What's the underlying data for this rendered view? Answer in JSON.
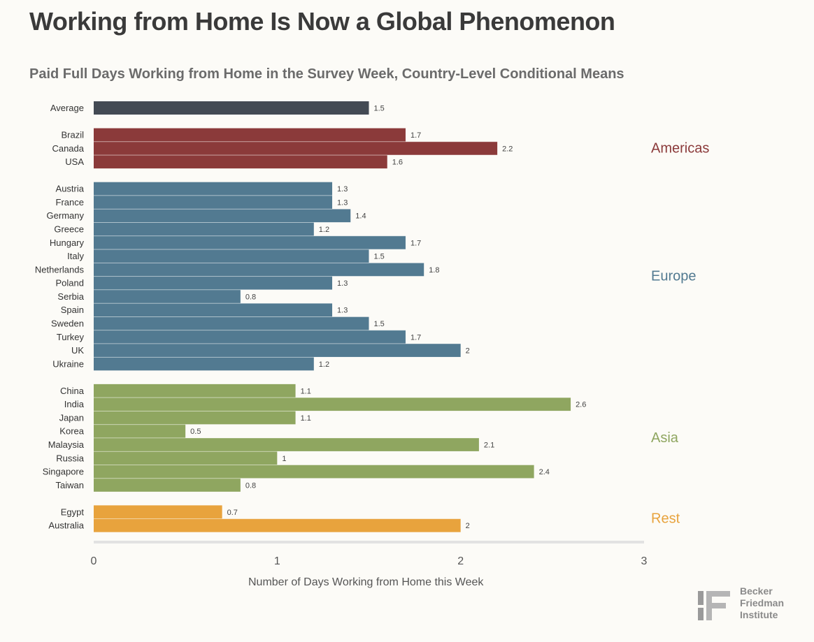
{
  "title": "Working from Home Is Now a Global Phenomenon",
  "subtitle": "Paid Full Days Working from Home in the Survey Week, Country-Level Conditional Means",
  "chart_data": {
    "type": "bar",
    "orientation": "horizontal",
    "title": "Paid Full Days Working from Home in the Survey Week, Country-Level Conditional Means",
    "xlabel": "Number of Days Working from Home this Week",
    "xlim": [
      0,
      3
    ],
    "xticks": [
      0,
      1,
      2,
      3
    ],
    "groups": [
      {
        "name": "",
        "color": "#434a54",
        "categories": [
          "Average"
        ],
        "values": [
          1.5
        ]
      },
      {
        "name": "Americas",
        "color": "#8b3a3a",
        "categories": [
          "Brazil",
          "Canada",
          "USA"
        ],
        "values": [
          1.7,
          2.2,
          1.6
        ]
      },
      {
        "name": "Europe",
        "color": "#527a91",
        "categories": [
          "Austria",
          "France",
          "Germany",
          "Greece",
          "Hungary",
          "Italy",
          "Netherlands",
          "Poland",
          "Serbia",
          "Spain",
          "Sweden",
          "Turkey",
          "UK",
          "Ukraine"
        ],
        "values": [
          1.3,
          1.3,
          1.4,
          1.2,
          1.7,
          1.5,
          1.8,
          1.3,
          0.8,
          1.3,
          1.5,
          1.7,
          2,
          1.2
        ]
      },
      {
        "name": "Asia",
        "color": "#8fa660",
        "categories": [
          "China",
          "India",
          "Japan",
          "Korea",
          "Malaysia",
          "Russia",
          "Singapore",
          "Taiwan"
        ],
        "values": [
          1.1,
          2.6,
          1.1,
          0.5,
          2.1,
          1,
          2.4,
          0.8
        ]
      },
      {
        "name": "Rest",
        "color": "#e8a33d",
        "categories": [
          "Egypt",
          "Australia"
        ],
        "values": [
          0.7,
          2
        ]
      }
    ]
  },
  "logo": {
    "line1": "Becker",
    "line2": "Friedman",
    "line3": "Institute",
    "mark": "BF"
  }
}
